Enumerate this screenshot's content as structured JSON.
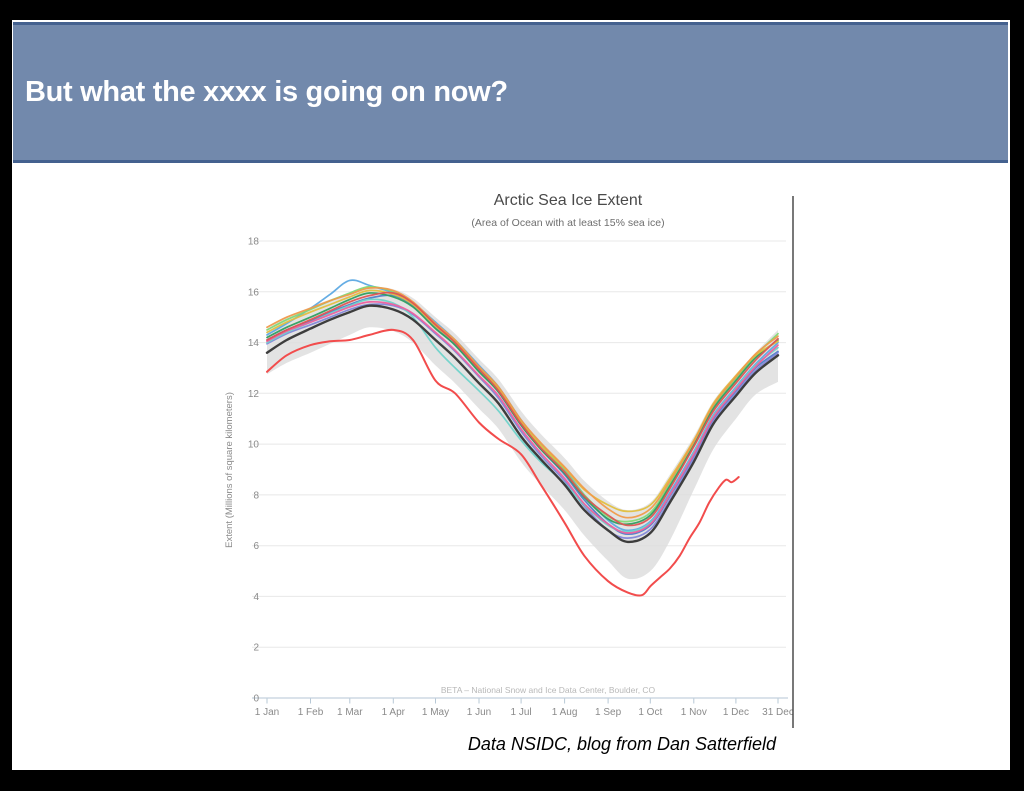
{
  "slide": {
    "title": "But what the xxxx is going on now?",
    "caption": "Data NSIDC, blog from Dan Satterfield",
    "banner_fill": "#7289ac",
    "banner_border": "#44618f",
    "frame_color": "#000000"
  },
  "chart_data": {
    "type": "line",
    "title": "Arctic Sea Ice Extent",
    "subtitle": "(Area of Ocean with at least 15% sea ice)",
    "ylabel": "Extent (Millions of square kilometers)",
    "source_note": "BETA – National Snow and Ice Data Center, Boulder, CO",
    "ylim": [
      0,
      18
    ],
    "yticks": [
      0,
      2,
      4,
      6,
      8,
      10,
      12,
      14,
      16,
      18
    ],
    "grid": true,
    "legend": "none",
    "xticks": [
      {
        "day": 1,
        "label": "1 Jan"
      },
      {
        "day": 32,
        "label": "1 Feb"
      },
      {
        "day": 60,
        "label": "1 Mar"
      },
      {
        "day": 91,
        "label": "1 Apr"
      },
      {
        "day": 121,
        "label": "1 May"
      },
      {
        "day": 152,
        "label": "1 Jun"
      },
      {
        "day": 182,
        "label": "1 Jul"
      },
      {
        "day": 213,
        "label": "1 Aug"
      },
      {
        "day": 244,
        "label": "1 Sep"
      },
      {
        "day": 274,
        "label": "1 Oct"
      },
      {
        "day": 305,
        "label": "1 Nov"
      },
      {
        "day": 335,
        "label": "1 Dec"
      },
      {
        "day": 365,
        "label": "31 Dec"
      }
    ],
    "x_days": [
      1,
      15,
      32,
      46,
      60,
      74,
      91,
      105,
      121,
      135,
      152,
      166,
      182,
      196,
      213,
      227,
      244,
      258,
      274,
      288,
      305,
      319,
      335,
      349,
      365
    ],
    "band": {
      "name": "plus-minus-2-stddev-band",
      "color": "#dcdcdc",
      "opacity": 0.8,
      "top": [
        14.55,
        15.0,
        15.4,
        15.7,
        15.95,
        16.2,
        16.1,
        15.75,
        15.0,
        14.35,
        13.35,
        12.55,
        11.3,
        10.4,
        9.45,
        8.55,
        7.75,
        7.4,
        7.7,
        8.8,
        10.3,
        11.7,
        12.75,
        13.6,
        14.5
      ],
      "bottom": [
        12.75,
        13.2,
        13.6,
        13.95,
        14.3,
        14.6,
        14.45,
        14.0,
        13.1,
        12.4,
        11.4,
        10.6,
        9.3,
        8.4,
        7.4,
        6.4,
        5.4,
        4.7,
        5.0,
        6.2,
        8.2,
        9.8,
        11.0,
        11.95,
        12.45
      ]
    },
    "series": [
      {
        "name": "year-sky-blue",
        "color": "#5da9e3",
        "values": [
          14.3,
          14.75,
          15.35,
          15.9,
          16.45,
          16.25,
          15.95,
          15.55,
          14.8,
          14.1,
          13.1,
          12.25,
          10.95,
          10.0,
          9.0,
          8.0,
          7.0,
          6.6,
          6.95,
          8.1,
          9.7,
          11.15,
          12.25,
          13.15,
          14.0
        ]
      },
      {
        "name": "year-blue",
        "color": "#4f7ec9",
        "values": [
          14.1,
          14.5,
          14.85,
          15.2,
          15.5,
          15.75,
          15.85,
          15.45,
          14.6,
          13.9,
          12.9,
          12.05,
          10.75,
          9.8,
          8.8,
          7.8,
          6.85,
          6.45,
          6.8,
          7.95,
          9.55,
          11.0,
          12.1,
          13.0,
          13.65
        ]
      },
      {
        "name": "year-periwinkle",
        "color": "#8286d8",
        "values": [
          13.95,
          14.35,
          14.7,
          15.0,
          15.3,
          15.5,
          15.45,
          15.1,
          14.35,
          13.65,
          12.65,
          11.8,
          10.5,
          9.55,
          8.55,
          7.55,
          6.6,
          6.3,
          6.65,
          7.8,
          9.45,
          10.9,
          12.0,
          12.9,
          13.6
        ]
      },
      {
        "name": "year-cyan",
        "color": "#6fd3ca",
        "values": [
          14.0,
          14.4,
          14.8,
          15.15,
          15.45,
          15.7,
          15.55,
          15.0,
          13.8,
          13.0,
          12.1,
          11.3,
          10.15,
          9.3,
          8.45,
          7.6,
          6.8,
          6.55,
          6.9,
          8.0,
          9.65,
          11.1,
          12.2,
          13.1,
          13.8
        ]
      },
      {
        "name": "year-light-green",
        "color": "#82d976",
        "values": [
          14.5,
          14.9,
          15.3,
          15.65,
          15.95,
          16.2,
          16.0,
          15.55,
          14.7,
          14.05,
          13.0,
          12.2,
          10.9,
          9.95,
          8.95,
          8.0,
          7.15,
          6.95,
          7.3,
          8.45,
          10.05,
          11.5,
          12.6,
          13.5,
          14.35
        ]
      },
      {
        "name": "year-green",
        "color": "#2f9e5f",
        "values": [
          14.2,
          14.6,
          15.0,
          15.35,
          15.7,
          15.95,
          15.8,
          15.4,
          14.55,
          13.9,
          12.85,
          12.05,
          10.75,
          9.8,
          8.85,
          7.9,
          7.05,
          6.85,
          7.2,
          8.35,
          9.95,
          11.4,
          12.5,
          13.4,
          14.1
        ]
      },
      {
        "name": "year-gold",
        "color": "#e2bf3e",
        "values": [
          14.4,
          14.8,
          15.2,
          15.5,
          15.8,
          16.05,
          15.9,
          15.5,
          14.65,
          14.0,
          12.95,
          12.15,
          10.85,
          9.95,
          9.05,
          8.2,
          7.6,
          7.35,
          7.6,
          8.65,
          10.15,
          11.6,
          12.7,
          13.5,
          14.05
        ]
      },
      {
        "name": "year-orange",
        "color": "#f09a4a",
        "values": [
          14.6,
          15.0,
          15.35,
          15.65,
          15.9,
          16.15,
          16.05,
          15.6,
          14.75,
          14.1,
          13.05,
          12.25,
          10.95,
          10.05,
          9.1,
          8.25,
          7.45,
          7.1,
          7.45,
          8.55,
          10.1,
          11.55,
          12.65,
          13.55,
          14.25
        ]
      },
      {
        "name": "year-pink",
        "color": "#ee5f9e",
        "values": [
          14.05,
          14.45,
          14.8,
          15.1,
          15.4,
          15.6,
          15.5,
          15.15,
          14.4,
          13.7,
          12.7,
          11.9,
          10.6,
          9.65,
          8.65,
          7.65,
          6.85,
          6.5,
          6.85,
          8.0,
          9.6,
          11.05,
          12.15,
          13.05,
          13.9
        ]
      },
      {
        "name": "year-crimson",
        "color": "#df5353",
        "values": [
          14.1,
          14.5,
          14.9,
          15.25,
          15.6,
          15.85,
          15.95,
          15.55,
          14.7,
          14.0,
          12.95,
          12.1,
          10.8,
          9.85,
          8.9,
          7.95,
          7.2,
          6.8,
          7.1,
          8.25,
          9.9,
          11.3,
          12.4,
          13.3,
          14.15
        ]
      }
    ],
    "average_series": {
      "name": "average-line",
      "color": "#3d3d3d",
      "values": [
        13.6,
        14.1,
        14.55,
        14.9,
        15.2,
        15.45,
        15.3,
        14.9,
        14.1,
        13.4,
        12.4,
        11.6,
        10.3,
        9.4,
        8.4,
        7.4,
        6.6,
        6.15,
        6.5,
        7.7,
        9.3,
        10.8,
        11.9,
        12.8,
        13.5
      ]
    },
    "current_year_series": {
      "name": "current-year-red",
      "color": "#f24c4c",
      "x_days": [
        1,
        15,
        32,
        46,
        60,
        74,
        91,
        105,
        121,
        135,
        152,
        166,
        182,
        196,
        213,
        227,
        244,
        258,
        268,
        274,
        281,
        288,
        295,
        302,
        309,
        316,
        323,
        328,
        332,
        337
      ],
      "values": [
        12.85,
        13.5,
        13.9,
        14.05,
        14.1,
        14.3,
        14.5,
        14.1,
        12.5,
        12.0,
        10.85,
        10.2,
        9.6,
        8.4,
        6.9,
        5.6,
        4.6,
        4.15,
        4.05,
        4.4,
        4.75,
        5.1,
        5.6,
        6.3,
        6.9,
        7.7,
        8.3,
        8.6,
        8.5,
        8.7
      ]
    }
  }
}
